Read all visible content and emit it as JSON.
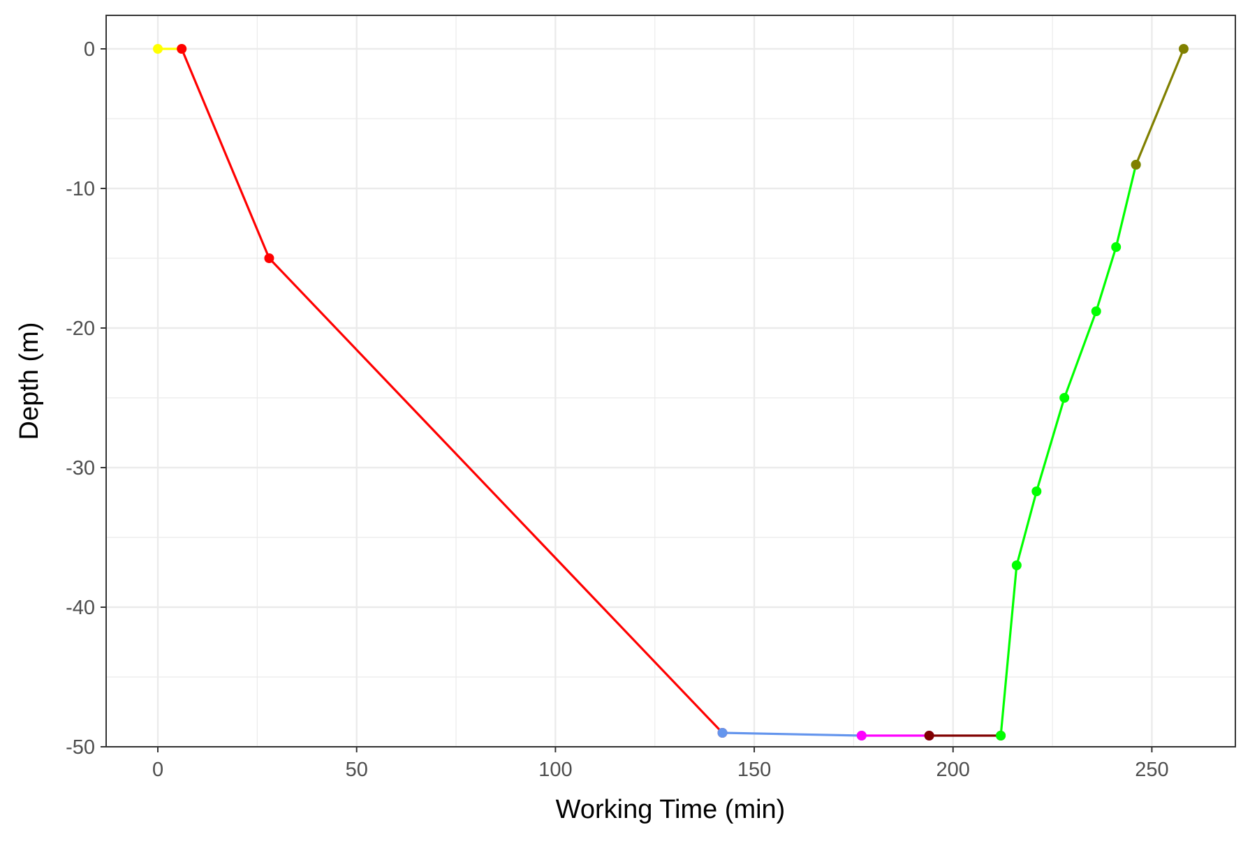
{
  "chart_data": {
    "type": "line",
    "title": "",
    "xlabel": "Working Time (min)",
    "ylabel": "Depth (m)",
    "xlim": [
      -13,
      271
    ],
    "ylim": [
      -50,
      2.4
    ],
    "x_ticks": [
      0,
      50,
      100,
      150,
      200,
      250
    ],
    "y_ticks": [
      0,
      -10,
      -20,
      -30,
      -40,
      -50
    ],
    "grid": true,
    "legend": "none",
    "series": [
      {
        "color": "#FFFF00",
        "points": [
          [
            0,
            0
          ],
          [
            6,
            0
          ]
        ]
      },
      {
        "color": "#FF0000",
        "points": [
          [
            6,
            0
          ],
          [
            28,
            -15
          ],
          [
            142,
            -49
          ]
        ]
      },
      {
        "color": "#6495ED",
        "points": [
          [
            142,
            -49
          ],
          [
            177,
            -49.2
          ]
        ]
      },
      {
        "color": "#FF00FF",
        "points": [
          [
            177,
            -49.2
          ],
          [
            194,
            -49.2
          ]
        ]
      },
      {
        "color": "#800000",
        "points": [
          [
            194,
            -49.2
          ],
          [
            212,
            -49.2
          ]
        ]
      },
      {
        "color": "#00FF00",
        "points": [
          [
            212,
            -49.2
          ],
          [
            216,
            -37
          ],
          [
            221,
            -31.7
          ],
          [
            228,
            -25
          ],
          [
            236,
            -18.8
          ],
          [
            241,
            -14.2
          ],
          [
            246,
            -8.3
          ]
        ]
      },
      {
        "color": "#808000",
        "points": [
          [
            246,
            -8.3
          ],
          [
            258,
            0
          ]
        ]
      }
    ]
  }
}
